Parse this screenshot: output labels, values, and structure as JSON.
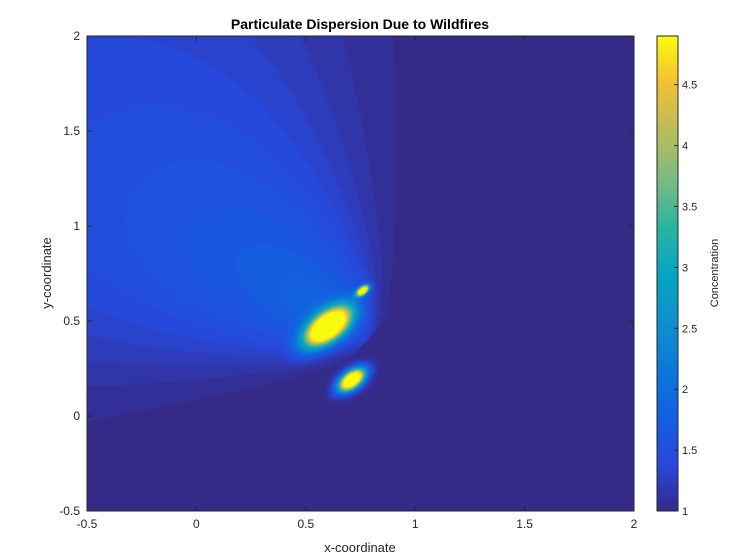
{
  "chart_data": {
    "type": "heatmap",
    "title": "Particulate Dispersion Due to Wildfires",
    "xlabel": "x-coordinate",
    "ylabel": "y-coordinate",
    "xlim": [
      -0.5,
      2
    ],
    "ylim": [
      -0.5,
      2
    ],
    "x_ticks": [
      -0.5,
      0,
      0.5,
      1,
      1.5,
      2
    ],
    "x_tick_labels": [
      "-0.5",
      "0",
      "0.5",
      "1",
      "1.5",
      "2"
    ],
    "y_ticks": [
      -0.5,
      0,
      0.5,
      1,
      1.5,
      2
    ],
    "y_tick_labels": [
      "-0.5",
      "0",
      "0.5",
      "1",
      "1.5",
      "2"
    ],
    "colormap": "parula",
    "colorbar": {
      "label": "Concentration",
      "range": [
        1,
        4.9
      ],
      "ticks": [
        1,
        1.5,
        2,
        2.5,
        3,
        3.5,
        4,
        4.5
      ],
      "tick_labels": [
        "1",
        "1.5",
        "2",
        "2.5",
        "3",
        "3.5",
        "4",
        "4.5"
      ]
    },
    "background_value": 1.0,
    "sources": [
      {
        "x": 0.6,
        "y": 0.47,
        "peak": 4.9
      },
      {
        "x": 0.71,
        "y": 0.19,
        "peak": 4.9
      },
      {
        "x": 0.76,
        "y": 0.66,
        "peak": 4.9
      }
    ],
    "plume": {
      "direction": "up-left",
      "max_value": 1.9,
      "extent_x": [
        -0.5,
        0.85
      ],
      "extent_y": [
        0.05,
        2.0
      ]
    },
    "grid": false
  }
}
